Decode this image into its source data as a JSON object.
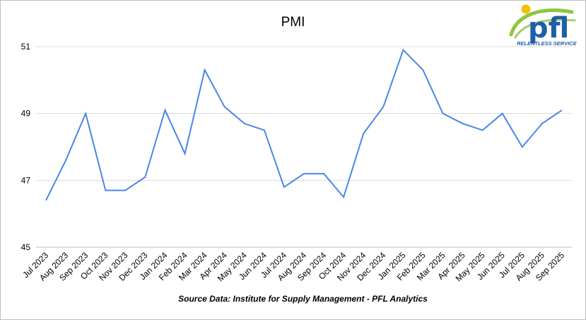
{
  "chart_data": {
    "type": "line",
    "title": "PMI",
    "xlabel": "",
    "ylabel": "",
    "categories": [
      "Jul 2023",
      "Aug 2023",
      "Sep 2023",
      "Oct 2023",
      "Nov 2023",
      "Dec 2023",
      "Jan 2024",
      "Feb 2024",
      "Mar 2024",
      "Apr 2024",
      "May 2024",
      "Jun 2024",
      "Jul 2024",
      "Aug 2024",
      "Sep 2024",
      "Oct 2024",
      "Nov 2024",
      "Dec 2024",
      "Jan 2025",
      "Feb 2025",
      "Mar 2025",
      "Apr 2025",
      "May 2025",
      "Jun 2025",
      "Jul 2025",
      "Aug 2025",
      "Sep 2025"
    ],
    "series": [
      {
        "values": [
          46.4,
          47.6,
          49.0,
          46.7,
          46.7,
          47.1,
          49.1,
          47.8,
          50.3,
          49.2,
          48.7,
          48.5,
          46.8,
          47.2,
          47.2,
          46.5,
          48.4,
          49.2,
          50.9,
          50.3,
          49.0,
          48.7,
          48.5,
          49.0,
          48.0,
          48.7,
          49.1
        ],
        "color": "#4a86e8"
      }
    ],
    "ylim": [
      45,
      51
    ],
    "yticks": [
      45,
      47,
      49,
      51
    ],
    "grid": true,
    "legend": "none"
  },
  "source_note": "Source Data: Institute for Supply Management - PFL Analytics",
  "logo": {
    "text": "pfl",
    "tagline": "RELENTLESS SERVICE",
    "colors": {
      "primary": "#1f5fa8",
      "accent": "#8cc63f",
      "sun": "#f2c200"
    }
  },
  "colors": {
    "gridline": "#d9d9d9",
    "axis": "#bfbfbf"
  }
}
